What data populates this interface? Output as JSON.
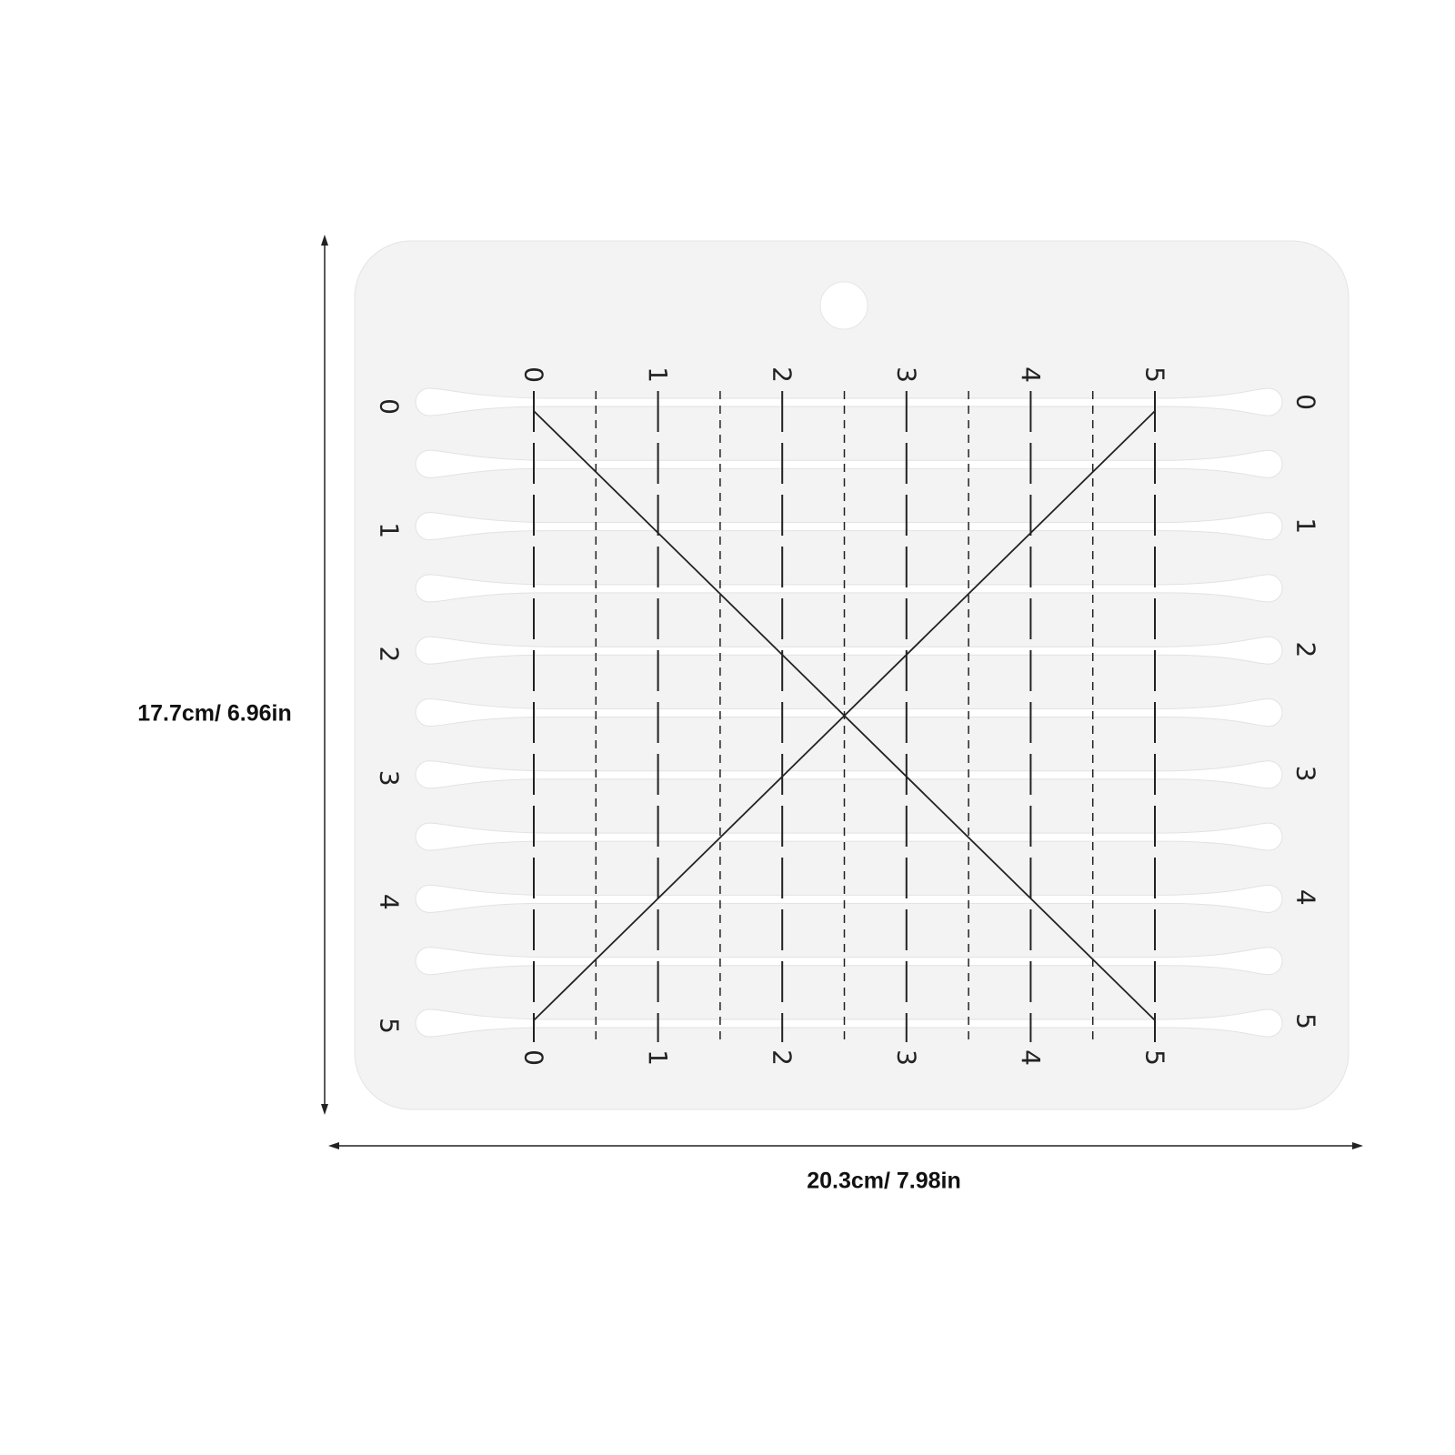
{
  "dimensions": {
    "height_label": "17.7cm/ 6.96in",
    "width_label": "20.3cm/ 7.98in"
  },
  "ruler": {
    "top_scale": [
      "0",
      "1",
      "2",
      "3",
      "4",
      "5"
    ],
    "bottom_scale": [
      "0",
      "1",
      "2",
      "3",
      "4",
      "5"
    ],
    "left_scale": [
      "0",
      "1",
      "2",
      "3",
      "4",
      "5"
    ],
    "right_scale": [
      "0",
      "1",
      "2",
      "3",
      "4",
      "5"
    ],
    "slot_count": 11,
    "colors": {
      "board": "#f3f3f3",
      "lines": "#222222",
      "slots": "#ffffff"
    }
  }
}
